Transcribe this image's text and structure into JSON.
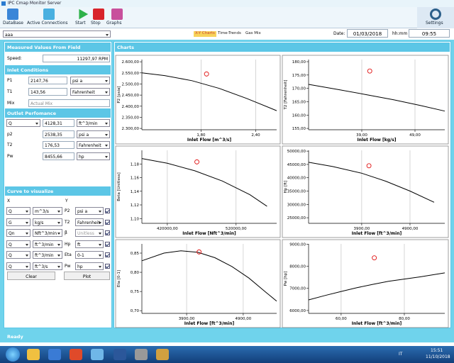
{
  "window_title": "IPC Cmap Monitor Server",
  "toolbar": [
    "DataBase",
    "Active Connections",
    "Start",
    "Stop",
    "Graphs"
  ],
  "settings": "Settings",
  "selector": "aaa",
  "tabs": [
    "X-Y Charts",
    "Time-Trends",
    "Gas Mix"
  ],
  "date_label": "Date:",
  "date": "01/03/2018",
  "time_label": "hh:mm",
  "time": "09:55",
  "left": {
    "measured_title": "Measured Values From Field",
    "speed_label": "Speed:",
    "speed": "11297,97 RPM",
    "inlet_title": "Inlet Conditions",
    "inlet_rows": [
      [
        "P1",
        "2147,76",
        "psi a"
      ],
      [
        "T1",
        "143,56",
        "Fahrenheit"
      ]
    ],
    "mix_label": "Mix",
    "mix": "Actual Mix",
    "outlet_title": "Outlet Perfomance",
    "outlet_rows": [
      [
        "Q",
        "4128,31",
        "ft^3/min"
      ],
      [
        "p2",
        "2538,35",
        "psi a"
      ],
      [
        "T2",
        "176,53",
        "Fahrenheit"
      ],
      [
        "Pw",
        "8455,66",
        "hp"
      ]
    ],
    "curve_title": "Curve to visualize",
    "x_head": "X",
    "y_head": "Y",
    "curve_rows": [
      [
        "Q",
        "m^3/s",
        "P2",
        "psi a"
      ],
      [
        "G",
        "kg/s",
        "T2",
        "Fahrenheit"
      ],
      [
        "Qn",
        "Nft^3/min",
        "β",
        "Unitless"
      ],
      [
        "Q",
        "ft^3/min",
        "Hp",
        "ft"
      ],
      [
        "Q",
        "ft^3/min",
        "Eta",
        "0-1"
      ],
      [
        "Q",
        "ft^3/s",
        "Pw",
        "hp"
      ]
    ],
    "clear": "Clear",
    "plot": "Plot"
  },
  "charts_title": "Charts",
  "charts": [
    {
      "type": "line",
      "ylabel": "P2 [psia]",
      "xlabel": "Inlet Flow [m^3/s]",
      "xlim": [
        1.15,
        2.63
      ],
      "ylim": [
        2294,
        2610
      ],
      "xticks": [
        {
          "value": 1.8,
          "label": "1,80"
        },
        {
          "value": 2.4,
          "label": "2,40"
        }
      ],
      "yticks": [
        {
          "value": 2600,
          "label": "2.600,00"
        },
        {
          "value": 2550,
          "label": "2.550,00"
        },
        {
          "value": 2500,
          "label": "2.500,00"
        },
        {
          "value": 2450,
          "label": "2.450,00"
        },
        {
          "value": 2400,
          "label": "2.400,00"
        },
        {
          "value": 2350,
          "label": "2.350,00"
        },
        {
          "value": 2300,
          "label": "2.300,00"
        }
      ],
      "series": [
        {
          "color": "#000000",
          "x": [
            1.15,
            1.4,
            1.7,
            2.0,
            2.3,
            2.63
          ],
          "values": [
            2550,
            2538,
            2515,
            2480,
            2435,
            2380
          ]
        }
      ],
      "points": {
        "color": "#e01010",
        "x": [
          1.86
        ],
        "values": [
          2545
        ]
      }
    },
    {
      "type": "line",
      "ylabel": "T2 [Fahrenheit]",
      "xlabel": "Inlet Flow [kg/s]",
      "xlim": [
        29,
        54.6
      ],
      "ylim": [
        154.5,
        180.8
      ],
      "xticks": [
        {
          "value": 39,
          "label": "39,00"
        },
        {
          "value": 49,
          "label": "49,00"
        }
      ],
      "yticks": [
        {
          "value": 180,
          "label": "180,00"
        },
        {
          "value": 175,
          "label": "175,00"
        },
        {
          "value": 170,
          "label": "170,00"
        },
        {
          "value": 165,
          "label": "165,00"
        },
        {
          "value": 160,
          "label": "160,00"
        },
        {
          "value": 155,
          "label": "155,00"
        }
      ],
      "series": [
        {
          "color": "#000000",
          "x": [
            29,
            35,
            40,
            45,
            50,
            54.6
          ],
          "values": [
            171.5,
            169.4,
            167.6,
            165.7,
            163.6,
            161.5
          ]
        }
      ],
      "points": {
        "color": "#e01010",
        "x": [
          40.5
        ],
        "values": [
          176.5
        ]
      }
    },
    {
      "type": "line",
      "ylabel": "Beta [Unitless]",
      "xlabel": "Inlet Flow [Nft^3/min]",
      "xlim": [
        383000,
        579000
      ],
      "ylim": [
        1.093,
        1.2
      ],
      "xticks": [
        {
          "value": 420000,
          "label": "420000,00"
        },
        {
          "value": 520000,
          "label": "520000,00"
        }
      ],
      "yticks": [
        {
          "value": 1.18,
          "label": "1,18"
        },
        {
          "value": 1.16,
          "label": "1,16"
        },
        {
          "value": 1.14,
          "label": "1,14"
        },
        {
          "value": 1.12,
          "label": "1,12"
        },
        {
          "value": 1.1,
          "label": "1,10"
        }
      ],
      "series": [
        {
          "color": "#000000",
          "x": [
            383000,
            420000,
            460000,
            500000,
            540000,
            565000
          ],
          "values": [
            1.188,
            1.181,
            1.17,
            1.155,
            1.135,
            1.118
          ]
        }
      ],
      "points": {
        "color": "#e01010",
        "x": [
          463000
        ],
        "values": [
          1.183
        ]
      }
    },
    {
      "type": "line",
      "ylabel": "Hp [ft]",
      "xlabel": "Inlet Flow [ft^3/min]",
      "xlim": [
        2800,
        5620
      ],
      "ylim": [
        22900,
        50300
      ],
      "xticks": [
        {
          "value": 3900,
          "label": "3900,00"
        },
        {
          "value": 4900,
          "label": "4900,00"
        }
      ],
      "yticks": [
        {
          "value": 50000,
          "label": "50000,00"
        },
        {
          "value": 45000,
          "label": "45000,00"
        },
        {
          "value": 40000,
          "label": "40000,00"
        },
        {
          "value": 35000,
          "label": "35000,00"
        },
        {
          "value": 30000,
          "label": "30000,00"
        },
        {
          "value": 25000,
          "label": "25000,00"
        }
      ],
      "series": [
        {
          "color": "#000000",
          "x": [
            2800,
            3300,
            3900,
            4400,
            4900,
            5400
          ],
          "values": [
            45800,
            44200,
            41700,
            38700,
            35000,
            30800
          ]
        }
      ],
      "points": {
        "color": "#e01010",
        "x": [
          4050
        ],
        "values": [
          44500
        ]
      }
    },
    {
      "type": "line",
      "ylabel": "Eta [0-1]",
      "xlabel": "Inlet Flow [ft^3/min]",
      "xlim": [
        3110,
        5490
      ],
      "ylim": [
        0.693,
        0.874
      ],
      "xticks": [
        {
          "value": 3900,
          "label": "3900,00"
        },
        {
          "value": 4900,
          "label": "4900,00"
        }
      ],
      "yticks": [
        {
          "value": 0.85,
          "label": "0,85"
        },
        {
          "value": 0.8,
          "label": "0,80"
        },
        {
          "value": 0.75,
          "label": "0,75"
        },
        {
          "value": 0.7,
          "label": "0,70"
        }
      ],
      "series": [
        {
          "color": "#000000",
          "x": [
            3110,
            3500,
            3800,
            4100,
            4400,
            4700,
            5000,
            5300,
            5490
          ],
          "values": [
            0.83,
            0.85,
            0.856,
            0.852,
            0.838,
            0.815,
            0.785,
            0.748,
            0.725
          ]
        }
      ],
      "points": {
        "color": "#e01010",
        "x": [
          4120
        ],
        "values": [
          0.853
        ]
      }
    },
    {
      "type": "line",
      "ylabel": "Pw [hp]",
      "xlabel": "Inlet Flow [ft^3/min]",
      "xlim": [
        49.7,
        92.8
      ],
      "ylim": [
        5870,
        9010
      ],
      "xticks": [
        {
          "value": 60,
          "label": "60,00"
        },
        {
          "value": 80,
          "label": "80,00"
        }
      ],
      "yticks": [
        {
          "value": 9000,
          "label": "9000,00"
        },
        {
          "value": 8000,
          "label": "8000,00"
        },
        {
          "value": 7000,
          "label": "7000,00"
        },
        {
          "value": 6000,
          "label": "6000,00"
        }
      ],
      "series": [
        {
          "color": "#000000",
          "x": [
            49.7,
            55,
            60,
            65,
            70,
            75,
            80,
            85,
            92.8
          ],
          "values": [
            6480,
            6680,
            6860,
            7030,
            7180,
            7320,
            7420,
            7520,
            7700
          ]
        }
      ],
      "points": {
        "color": "#e01010",
        "x": [
          70.5
        ],
        "values": [
          8380
        ]
      }
    }
  ],
  "status": "Ready",
  "taskbar": {
    "lang": "IT",
    "time": "15:51",
    "date": "11/10/2018"
  }
}
